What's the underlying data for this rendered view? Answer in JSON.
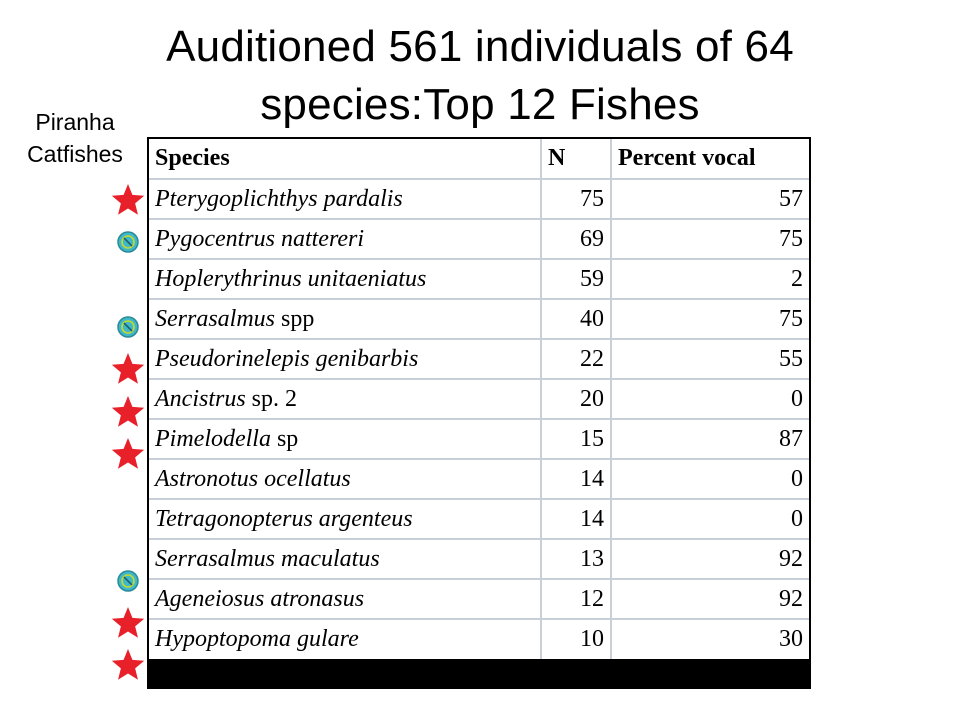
{
  "title": "Auditioned 561 individuals of 64 species:Top 12 Fishes",
  "legend": {
    "piranha_label": "Piranha",
    "catfishes_label": "Catfishes",
    "piranha_icon": "teal-circle-icon",
    "catfish_icon": "red-star-icon",
    "colors": {
      "piranha": "#3fb8c8",
      "piranha_ring": "#c8d830",
      "catfish": "#e8202a"
    }
  },
  "table": {
    "headers": {
      "species": "Species",
      "n": "N",
      "percent": "Percent vocal"
    },
    "rows": [
      {
        "genus_species": "Pterygoplichthys pardalis",
        "suffix": "",
        "n": "75",
        "percent": "57",
        "marker": "star"
      },
      {
        "genus_species": "Pygocentrus nattereri",
        "suffix": "",
        "n": "69",
        "percent": "75",
        "marker": "circle"
      },
      {
        "genus_species": "Hoplerythrinus unitaeniatus",
        "suffix": "",
        "n": "59",
        "percent": "2",
        "marker": ""
      },
      {
        "genus_species": "Serrasalmus",
        "suffix": " spp",
        "n": "40",
        "percent": "75",
        "marker": "circle"
      },
      {
        "genus_species": "Pseudorinelepis genibarbis",
        "suffix": "",
        "n": "22",
        "percent": "55",
        "marker": "star"
      },
      {
        "genus_species": "Ancistrus",
        "suffix": " sp. 2",
        "n": "20",
        "percent": "0",
        "marker": "star"
      },
      {
        "genus_species": "Pimelodella",
        "suffix": " sp",
        "n": "15",
        "percent": "87",
        "marker": "star"
      },
      {
        "genus_species": "Astronotus ocellatus",
        "suffix": "",
        "n": "14",
        "percent": "0",
        "marker": ""
      },
      {
        "genus_species": "Tetragonopterus argenteus",
        "suffix": "",
        "n": "14",
        "percent": "0",
        "marker": ""
      },
      {
        "genus_species": "Serrasalmus maculatus",
        "suffix": "",
        "n": "13",
        "percent": "92",
        "marker": "circle"
      },
      {
        "genus_species": "Ageneiosus atronasus",
        "suffix": "",
        "n": "12",
        "percent": "92",
        "marker": "star"
      },
      {
        "genus_species": "Hypoptopoma gulare",
        "suffix": "",
        "n": "10",
        "percent": "30",
        "marker": "star"
      }
    ]
  }
}
